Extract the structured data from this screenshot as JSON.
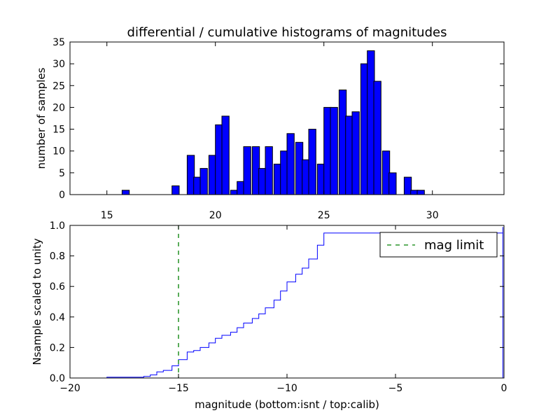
{
  "title": "differential / cumulative histograms of magnitudes",
  "colors": {
    "bar": "#0000ff",
    "line": "#0000ff",
    "limit": "#008000",
    "axis": "#000000"
  },
  "chart_data": [
    {
      "type": "bar",
      "name": "differential histogram",
      "xlim": [
        13.3,
        33.3
      ],
      "ylim": [
        0,
        35
      ],
      "xticks": [
        15,
        20,
        25,
        30
      ],
      "yticks": [
        0,
        5,
        10,
        15,
        20,
        25,
        30,
        35
      ],
      "xlabel": "",
      "ylabel": "number of samples",
      "bin_width": 0.333,
      "bins": [
        {
          "x": 15.7,
          "count": 1
        },
        {
          "x": 18.0,
          "count": 2
        },
        {
          "x": 18.7,
          "count": 9
        },
        {
          "x": 19.0,
          "count": 4
        },
        {
          "x": 19.3,
          "count": 6
        },
        {
          "x": 19.7,
          "count": 9
        },
        {
          "x": 20.0,
          "count": 16
        },
        {
          "x": 20.3,
          "count": 18
        },
        {
          "x": 20.7,
          "count": 1
        },
        {
          "x": 21.0,
          "count": 3
        },
        {
          "x": 21.3,
          "count": 11
        },
        {
          "x": 21.7,
          "count": 11
        },
        {
          "x": 22.0,
          "count": 6
        },
        {
          "x": 22.3,
          "count": 11
        },
        {
          "x": 22.7,
          "count": 7
        },
        {
          "x": 23.0,
          "count": 10
        },
        {
          "x": 23.3,
          "count": 14
        },
        {
          "x": 23.7,
          "count": 12
        },
        {
          "x": 24.0,
          "count": 8
        },
        {
          "x": 24.3,
          "count": 15
        },
        {
          "x": 24.7,
          "count": 7
        },
        {
          "x": 25.0,
          "count": 20
        },
        {
          "x": 25.3,
          "count": 20
        },
        {
          "x": 25.7,
          "count": 24
        },
        {
          "x": 26.0,
          "count": 18
        },
        {
          "x": 26.3,
          "count": 19
        },
        {
          "x": 26.7,
          "count": 30
        },
        {
          "x": 27.0,
          "count": 33
        },
        {
          "x": 27.3,
          "count": 26
        },
        {
          "x": 27.7,
          "count": 10
        },
        {
          "x": 28.0,
          "count": 5
        },
        {
          "x": 28.7,
          "count": 4
        },
        {
          "x": 29.0,
          "count": 1
        },
        {
          "x": 29.3,
          "count": 1
        }
      ]
    },
    {
      "type": "line",
      "name": "cumulative histogram",
      "xlim": [
        -20,
        0
      ],
      "ylim": [
        0,
        1.0
      ],
      "xticks": [
        -20,
        -15,
        -10,
        -5,
        0
      ],
      "yticks": [
        0.0,
        0.2,
        0.4,
        0.6,
        0.8,
        1.0
      ],
      "xlabel": "magnitude (bottom:isnt / top:calib)",
      "ylabel": "Nsample scaled to unity",
      "step_x": [
        -20.0,
        -18.3,
        -16.6,
        -16.3,
        -16.0,
        -15.7,
        -15.3,
        -15.0,
        -14.6,
        -14.3,
        -14.0,
        -13.6,
        -13.3,
        -13.0,
        -12.6,
        -12.3,
        -12.0,
        -11.6,
        -11.3,
        -11.0,
        -10.6,
        -10.3,
        -10.0,
        -9.6,
        -9.3,
        -9.0,
        -8.6,
        -8.3,
        -0.05
      ],
      "step_y": [
        0.0,
        0.005,
        0.01,
        0.02,
        0.04,
        0.05,
        0.08,
        0.12,
        0.17,
        0.18,
        0.2,
        0.23,
        0.26,
        0.28,
        0.3,
        0.33,
        0.36,
        0.39,
        0.42,
        0.46,
        0.51,
        0.57,
        0.63,
        0.68,
        0.72,
        0.78,
        0.87,
        0.95,
        0.99
      ],
      "final_drop": 0.0,
      "end_level": 1.0,
      "mag_limit": -15.0,
      "legend": {
        "label": "mag limit",
        "position": "top-right"
      }
    }
  ]
}
